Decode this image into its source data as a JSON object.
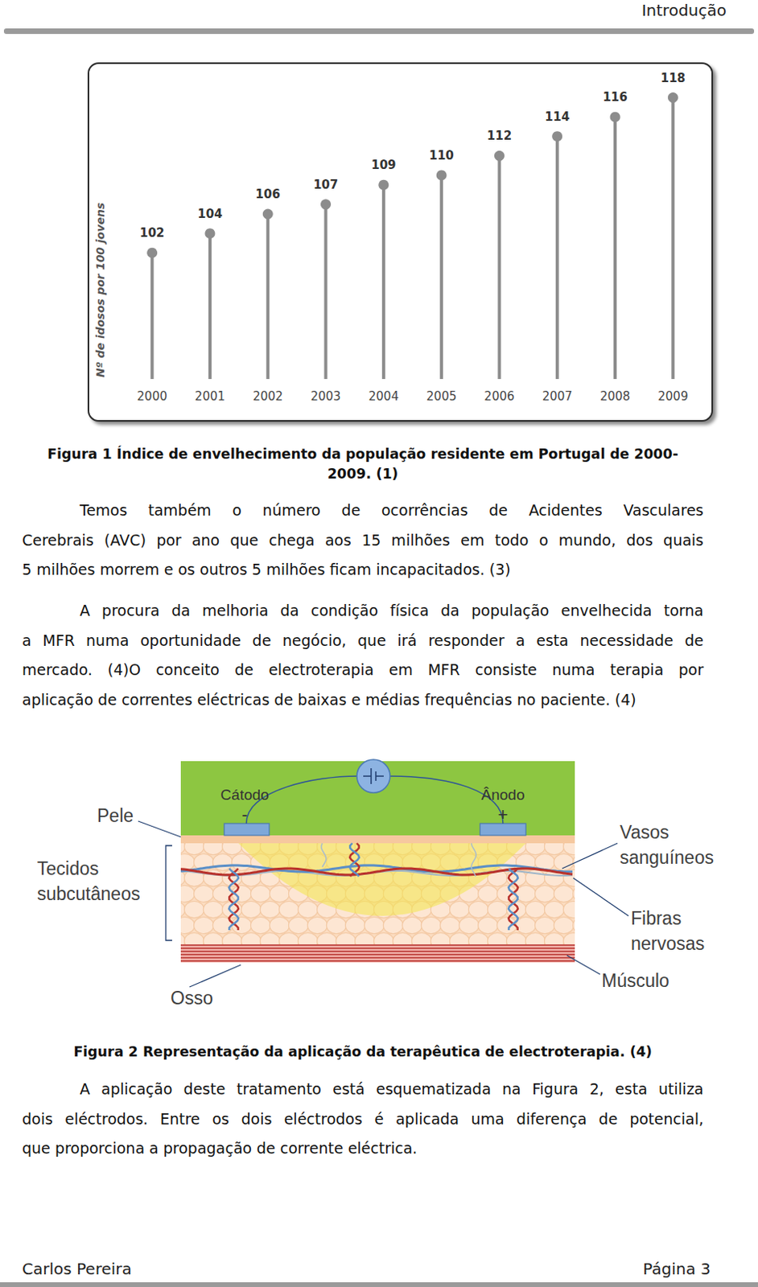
{
  "header": "Introdução",
  "chart_data": {
    "type": "lollipop",
    "y_label": "Nº de idosos por 100 jovens",
    "categories": [
      "2000",
      "2001",
      "2002",
      "2003",
      "2004",
      "2005",
      "2006",
      "2007",
      "2008",
      "2009"
    ],
    "values": [
      102,
      104,
      106,
      107,
      109,
      110,
      112,
      114,
      116,
      118
    ],
    "color": "#8c8c8c",
    "marker": "circle",
    "ylim": [
      89,
      120
    ],
    "data_labels": true,
    "tick_labels": "x",
    "grid": false
  },
  "figure1_caption": [
    "Figura 1 Índice de envelhecimento da população residente em Portugal de 2000-",
    "2009. (1)"
  ],
  "paragraphs_before": [
    [
      "Temos também o número de ocorrências de Acidentes Vasculares",
      "Cerebrais (AVC) por ano que chega aos 15 milhões em todo o mundo, dos quais",
      "5 milhões morrem e os outros 5 milhões ficam incapacitados. (3)"
    ],
    [
      "A procura da melhoria da condição física da população envelhecida torna",
      "a MFR numa oportunidade de negócio, que irá responder a esta necessidade de",
      "mercado. (4)O conceito de electroterapia em MFR consiste numa terapia por",
      "aplicação de correntes eléctricas de baixas e médias frequências no paciente. (4)"
    ]
  ],
  "figure2": {
    "cathode": "Cátodo",
    "cathode_sign": "-",
    "anode": "Ânodo",
    "anode_sign": "+",
    "skin": "Pele",
    "subcutaneous": [
      "Tecidos",
      "subcutâneos"
    ],
    "bone": "Osso",
    "vessels": [
      "Vasos",
      "sanguíneos"
    ],
    "nerves": [
      "Fibras",
      "nervosas"
    ],
    "muscle": "Músculo"
  },
  "figure2_caption": "Figura 2 Representação da aplicação da terapêutica de electroterapia. (4)",
  "paragraphs_after": [
    [
      "A aplicação deste tratamento está esquematizada na Figura 2, esta utiliza",
      "dois eléctrodos. Entre os dois eléctrodos é aplicada uma diferença de potencial,",
      "que proporciona a propagação de corrente eléctrica."
    ]
  ],
  "footer": {
    "author": "Carlos Pereira",
    "page": "Página 3"
  }
}
